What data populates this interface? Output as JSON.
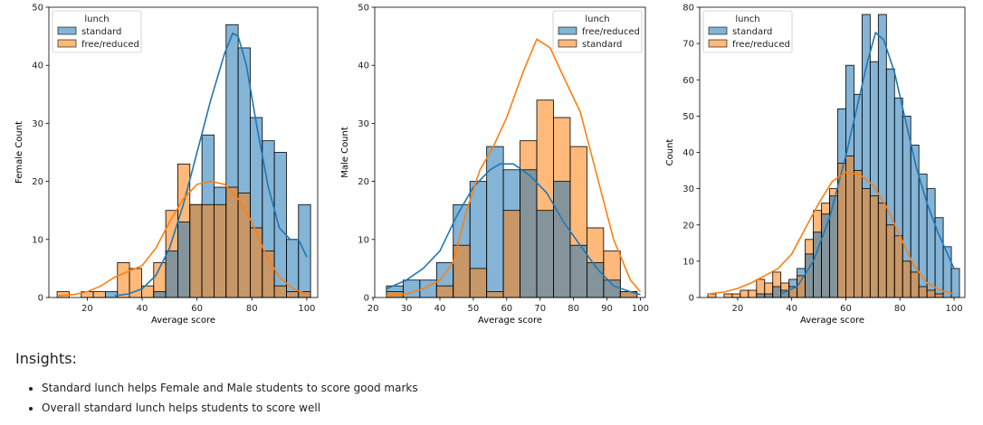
{
  "colors": {
    "blue": "#1f77b4",
    "orange": "#ff7f0e"
  },
  "chart_data": [
    {
      "type": "bar",
      "subtype": "stacked-overlay histogram with KDE",
      "xlabel": "Average score",
      "ylabel": "Female Count",
      "xlim": [
        6,
        104
      ],
      "ylim": [
        0,
        50
      ],
      "xticks": [
        20,
        40,
        60,
        80,
        100
      ],
      "yticks": [
        0,
        10,
        20,
        30,
        40,
        50
      ],
      "legend": {
        "title": "lunch",
        "position": "upper left"
      },
      "series": [
        {
          "name": "standard",
          "color": "#1f77b4",
          "bin_edges": [
            9,
            13.4,
            17.8,
            22.2,
            26.6,
            31,
            35.4,
            39.8,
            44.2,
            48.6,
            53,
            57.4,
            61.8,
            66.2,
            70.6,
            75,
            79.4,
            83.8,
            88.2,
            92.6,
            97,
            101.4
          ],
          "values": [
            0,
            0,
            0,
            0,
            1,
            0,
            0,
            0,
            1,
            8,
            13,
            16,
            28,
            19,
            47,
            43,
            31,
            27,
            25,
            10,
            16
          ],
          "kde": [
            [
              30,
              0.3
            ],
            [
              35,
              0.6
            ],
            [
              40,
              1.5
            ],
            [
              45,
              3.8
            ],
            [
              50,
              8.5
            ],
            [
              55,
              16
            ],
            [
              60,
              25
            ],
            [
              65,
              34
            ],
            [
              70,
              42
            ],
            [
              73,
              45.5
            ],
            [
              75,
              45
            ],
            [
              78,
              40
            ],
            [
              82,
              29
            ],
            [
              86,
              19
            ],
            [
              90,
              12
            ],
            [
              94,
              10
            ],
            [
              97,
              10
            ],
            [
              100,
              7
            ]
          ]
        },
        {
          "name": "free/reduced",
          "color": "#ff7f0e",
          "bin_edges": [
            9,
            13.4,
            17.8,
            22.2,
            26.6,
            31,
            35.4,
            39.8,
            44.2,
            48.6,
            53,
            57.4,
            61.8,
            66.2,
            70.6,
            75,
            79.4,
            83.8,
            88.2,
            92.6,
            97,
            101.4
          ],
          "values": [
            1,
            0,
            1,
            1,
            0,
            6,
            5,
            2,
            6,
            15,
            23,
            16,
            16,
            16,
            19,
            18,
            12,
            8,
            2,
            1,
            1
          ],
          "kde": [
            [
              9,
              0.3
            ],
            [
              15,
              0.5
            ],
            [
              20,
              1
            ],
            [
              25,
              2
            ],
            [
              30,
              3.5
            ],
            [
              35,
              4.5
            ],
            [
              40,
              5.5
            ],
            [
              45,
              8.5
            ],
            [
              50,
              13
            ],
            [
              55,
              17
            ],
            [
              60,
              19.5
            ],
            [
              65,
              20
            ],
            [
              70,
              19.5
            ],
            [
              75,
              17
            ],
            [
              80,
              13
            ],
            [
              85,
              7.5
            ],
            [
              90,
              3.5
            ],
            [
              95,
              1.5
            ],
            [
              100,
              0.6
            ]
          ]
        }
      ]
    },
    {
      "type": "bar",
      "subtype": "stacked-overlay histogram with KDE",
      "xlabel": "Average score",
      "ylabel": "Male Count",
      "xlim": [
        20.5,
        101.5
      ],
      "ylim": [
        0,
        50
      ],
      "xticks": [
        20,
        30,
        40,
        50,
        60,
        70,
        80,
        90,
        100
      ],
      "yticks": [
        0,
        10,
        20,
        30,
        40,
        50
      ],
      "legend": {
        "title": "lunch",
        "position": "upper right"
      },
      "series": [
        {
          "name": "free/reduced",
          "color": "#1f77b4",
          "bin_edges": [
            24,
            29,
            34,
            39,
            44,
            49,
            54,
            59,
            64,
            69,
            74,
            79,
            84,
            89,
            94,
            99
          ],
          "values": [
            2,
            3,
            3,
            6,
            16,
            20,
            26,
            22,
            22,
            15,
            20,
            9,
            6,
            3,
            1
          ],
          "kde": [
            [
              24,
              1.5
            ],
            [
              30,
              3
            ],
            [
              35,
              5
            ],
            [
              40,
              8
            ],
            [
              45,
              14
            ],
            [
              50,
              19
            ],
            [
              55,
              22
            ],
            [
              58,
              23
            ],
            [
              62,
              23
            ],
            [
              67,
              21
            ],
            [
              72,
              18
            ],
            [
              77,
              13
            ],
            [
              82,
              9
            ],
            [
              87,
              5
            ],
            [
              92,
              2
            ],
            [
              97,
              1
            ],
            [
              100,
              0.5
            ]
          ]
        },
        {
          "name": "standard",
          "color": "#ff7f0e",
          "bin_edges": [
            24,
            29,
            34,
            39,
            44,
            49,
            54,
            59,
            64,
            69,
            74,
            79,
            84,
            89,
            94,
            99
          ],
          "values": [
            1,
            0,
            0,
            2,
            9,
            5,
            1,
            15,
            27,
            34,
            31,
            26,
            12,
            8,
            1
          ],
          "kde": [
            [
              24,
              0.3
            ],
            [
              30,
              0.6
            ],
            [
              35,
              1.5
            ],
            [
              40,
              3
            ],
            [
              44,
              6
            ],
            [
              48,
              15
            ],
            [
              52,
              22
            ],
            [
              56,
              26
            ],
            [
              60,
              31
            ],
            [
              65,
              39
            ],
            [
              69,
              44.5
            ],
            [
              73,
              43
            ],
            [
              77,
              38
            ],
            [
              82,
              32
            ],
            [
              87,
              21
            ],
            [
              92,
              10
            ],
            [
              97,
              3
            ],
            [
              100,
              1
            ]
          ]
        }
      ]
    },
    {
      "type": "bar",
      "subtype": "stacked-overlay histogram with KDE",
      "xlabel": "Average score",
      "ylabel": "Count",
      "xlim": [
        6,
        104
      ],
      "ylim": [
        0,
        80
      ],
      "xticks": [
        20,
        40,
        60,
        80,
        100
      ],
      "yticks": [
        0,
        10,
        20,
        30,
        40,
        50,
        60,
        70,
        80
      ],
      "legend": {
        "title": "lunch",
        "position": "upper left"
      },
      "series": [
        {
          "name": "standard",
          "color": "#1f77b4",
          "bin_edges": [
            9,
            12,
            15,
            18,
            21,
            24,
            27,
            30,
            33,
            36,
            39,
            42,
            45,
            48,
            51,
            54,
            57,
            60,
            63,
            66,
            69,
            72,
            75,
            78,
            81,
            84,
            87,
            90,
            93,
            96,
            99,
            102
          ],
          "values": [
            0,
            0,
            0,
            0,
            0,
            0,
            1,
            1,
            3,
            2,
            5,
            8,
            12,
            18,
            23,
            28,
            52,
            64,
            56,
            78,
            65,
            78,
            63,
            55,
            50,
            42,
            34,
            30,
            22,
            14,
            8
          ],
          "kde": [
            [
              36,
              1
            ],
            [
              42,
              3
            ],
            [
              48,
              10
            ],
            [
              54,
              22
            ],
            [
              60,
              39
            ],
            [
              64,
              52
            ],
            [
              68,
              65
            ],
            [
              71,
              73
            ],
            [
              74,
              71
            ],
            [
              78,
              62
            ],
            [
              82,
              49
            ],
            [
              86,
              36
            ],
            [
              90,
              26
            ],
            [
              94,
              18
            ],
            [
              97,
              13
            ],
            [
              100,
              8
            ]
          ]
        },
        {
          "name": "free/reduced",
          "color": "#ff7f0e",
          "bin_edges": [
            9,
            12,
            15,
            18,
            21,
            24,
            27,
            30,
            33,
            36,
            39,
            42,
            45,
            48,
            51,
            54,
            57,
            60,
            63,
            66,
            69,
            72,
            75,
            78,
            81,
            84,
            87,
            90,
            93,
            96,
            99,
            102
          ],
          "values": [
            1,
            0,
            1,
            1,
            2,
            2,
            5,
            4,
            7,
            4,
            3,
            6,
            16,
            24,
            26,
            30,
            37,
            39,
            35,
            30,
            28,
            26,
            20,
            17,
            10,
            7,
            3,
            2,
            1,
            0,
            0
          ],
          "kde": [
            [
              9,
              1
            ],
            [
              15,
              1.5
            ],
            [
              20,
              2.5
            ],
            [
              25,
              4
            ],
            [
              30,
              6
            ],
            [
              35,
              8
            ],
            [
              40,
              12
            ],
            [
              45,
              19
            ],
            [
              50,
              26
            ],
            [
              55,
              32
            ],
            [
              60,
              34.5
            ],
            [
              65,
              34
            ],
            [
              70,
              31
            ],
            [
              75,
              25
            ],
            [
              80,
              17
            ],
            [
              85,
              9
            ],
            [
              90,
              4
            ],
            [
              95,
              2
            ],
            [
              100,
              1
            ]
          ]
        }
      ]
    }
  ],
  "insights": {
    "heading": "Insights:",
    "bullets": [
      "Standard lunch helps Female and Male students to score good marks",
      "Overall standard lunch helps students to score well"
    ]
  }
}
